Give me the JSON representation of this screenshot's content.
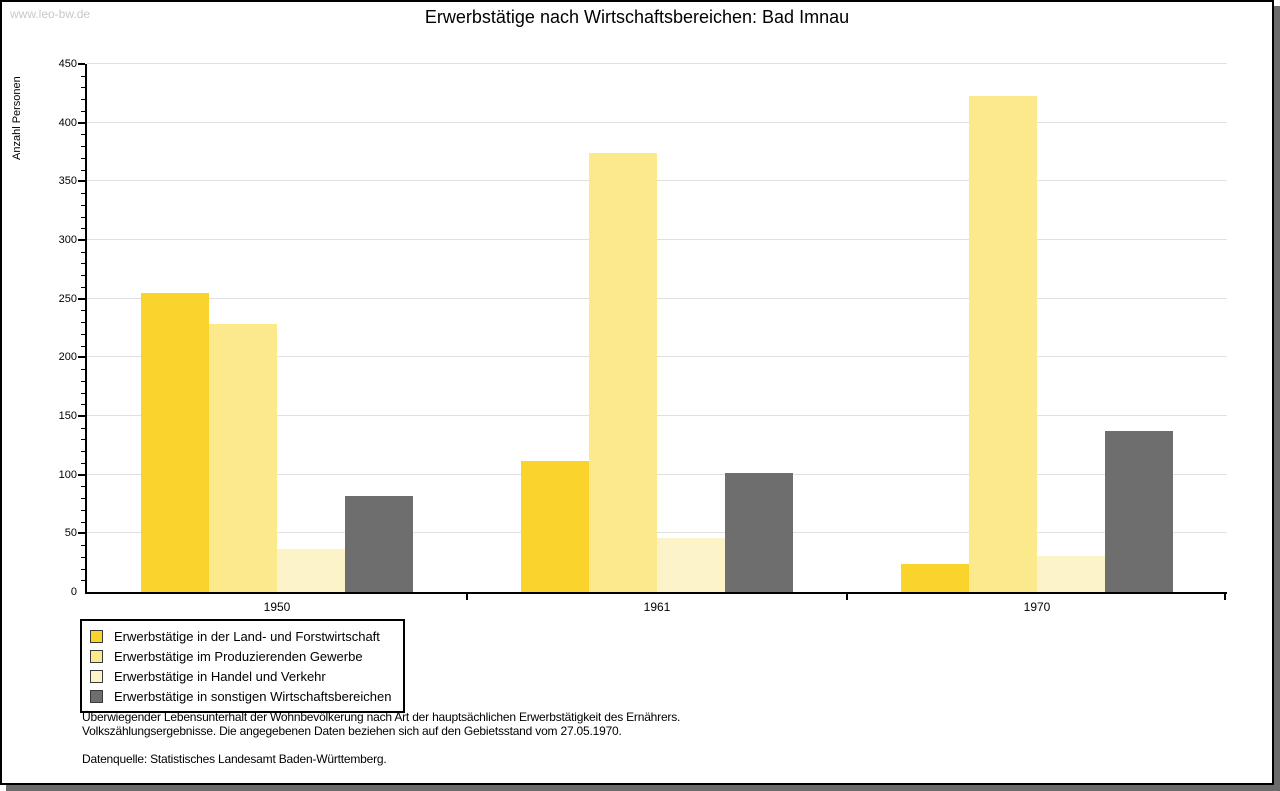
{
  "watermark": "www.leo-bw.de",
  "chart_data": {
    "type": "bar",
    "title": "Erwerbstätige nach Wirtschaftsbereichen: Bad Imnau",
    "ylabel": "Anzahl Personen",
    "xlabel": "",
    "categories": [
      "1950",
      "1961",
      "1970"
    ],
    "series": [
      {
        "name": "Erwerbstätige in der Land- und Forstwirtschaft",
        "color": "#FBD32D",
        "values": [
          255,
          112,
          24
        ]
      },
      {
        "name": "Erwerbstätige im Produzierenden Gewerbe",
        "color": "#FCE98C",
        "values": [
          228,
          374,
          423
        ]
      },
      {
        "name": "Erwerbstätige in Handel und Verkehr",
        "color": "#FCF4C8",
        "values": [
          37,
          46,
          31
        ]
      },
      {
        "name": "Erwerbstätige in sonstigen Wirtschaftsbereichen",
        "color": "#6E6E6E",
        "values": [
          82,
          101,
          137
        ]
      }
    ],
    "ylim": [
      0,
      450
    ],
    "ytick_step": 50,
    "ytick_minor_step": 10,
    "grid": true,
    "legend_position": "bottom-left"
  },
  "notes": [
    "Überwiegender Lebensunterhalt der Wohnbevölkerung nach Art der hauptsächlichen Erwerbstätigkeit des Ernährers.",
    "Volkszählungsergebnisse. Die angegebenen Daten beziehen sich auf den Gebietsstand vom 27.05.1970.",
    "Datenquelle: Statistisches Landesamt Baden-Württemberg."
  ],
  "colors": {
    "axis": "#000000",
    "gridline": "#E0E0E0",
    "watermark_text": "#C8C8C8",
    "panel_shadow": "#6B6B6B",
    "background": "#FFFFFF"
  }
}
